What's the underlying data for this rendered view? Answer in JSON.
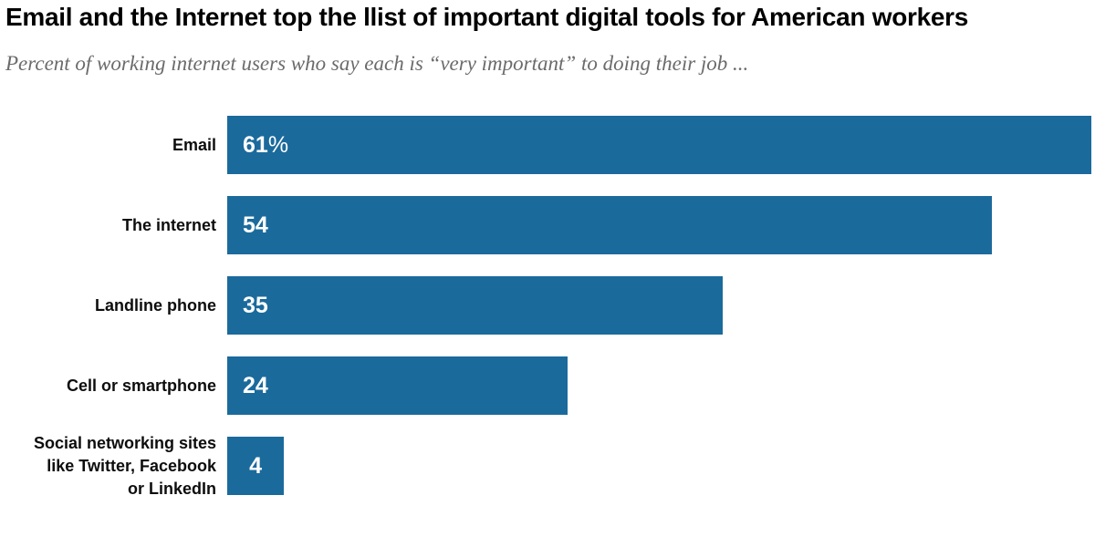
{
  "header": {
    "title": "Email and the Internet top the llist of important digital tools for American workers",
    "subtitle": "Percent of working internet users who say each is “very important” to doing their job ..."
  },
  "colors": {
    "bar": "#1b6a9c",
    "title_text": "#000000",
    "subtitle_text": "#6b6b6b",
    "value_text": "#ffffff",
    "background": "#ffffff"
  },
  "chart_data": {
    "type": "bar",
    "orientation": "horizontal",
    "title": "Email and the Internet top the llist of important digital tools for American workers",
    "subtitle": "Percent of working internet users who say each is “very important” to doing their job ...",
    "categories": [
      "Email",
      "The internet",
      "Landline phone",
      "Cell or smartphone",
      "Social networking sites\nlike Twitter, Facebook\nor LinkedIn"
    ],
    "values": [
      61,
      54,
      35,
      24,
      4
    ],
    "value_labels": [
      "61%",
      "54",
      "35",
      "24",
      "4"
    ],
    "value_label_align": [
      "inset",
      "inset",
      "inset",
      "inset",
      "center"
    ],
    "xlabel": "",
    "ylabel": "",
    "xmax": 61,
    "grid": false,
    "legend": false,
    "axis_ticks": false
  }
}
